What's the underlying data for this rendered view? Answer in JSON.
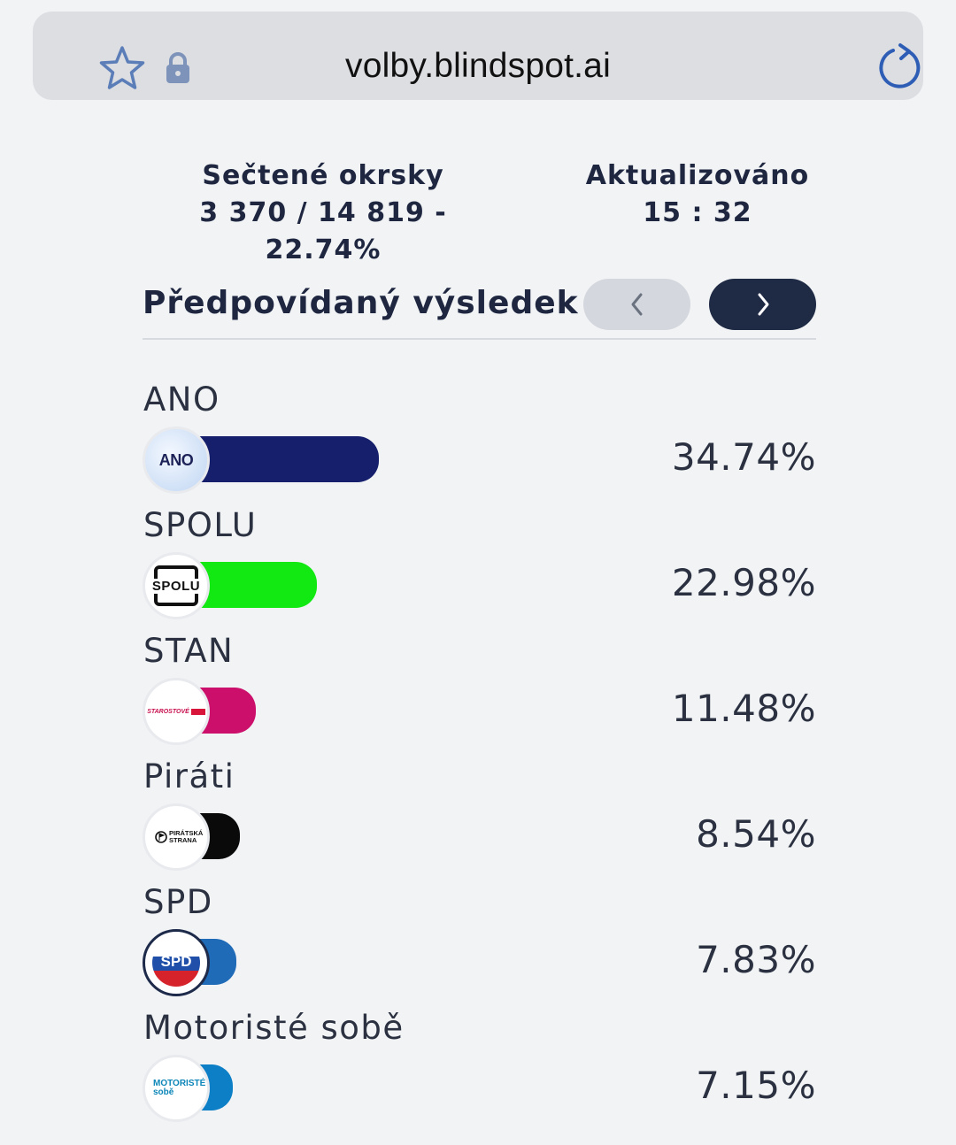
{
  "browser": {
    "url": "volby.blindspot.ai",
    "icons": [
      "star-icon",
      "lock-icon",
      "reload-icon"
    ]
  },
  "stats": {
    "counted_label": "Sečtené okrsky",
    "counted_value": "3 370 / 14 819 - 22.74%",
    "updated_label": "Aktualizováno",
    "updated_value": "15 : 32"
  },
  "section": {
    "title": "Předpovídaný výsledek",
    "prev_icon": "chevron-left-icon",
    "next_icon": "chevron-right-icon"
  },
  "parties": [
    {
      "name": "ANO",
      "percent": "34.74%",
      "value": 34.74,
      "color": "#151f6b",
      "logo_text": "ANO"
    },
    {
      "name": "SPOLU",
      "percent": "22.98%",
      "value": 22.98,
      "color": "#12e812",
      "logo_text": "SPOLU"
    },
    {
      "name": "STAN",
      "percent": "11.48%",
      "value": 11.48,
      "color": "#cc0f6b",
      "logo_text": "STAROSTOVÉ"
    },
    {
      "name": "Piráti",
      "percent": "8.54%",
      "value": 8.54,
      "color": "#0a0a0a",
      "logo_text": "PIRÁTSKÁ STRANA"
    },
    {
      "name": "SPD",
      "percent": "7.83%",
      "value": 7.83,
      "color": "#1f6bb8",
      "logo_text": "SPD"
    },
    {
      "name": "Motoristé sobě",
      "percent": "7.15%",
      "value": 7.15,
      "color": "#0d7fc6",
      "logo_text": "MOTORISTÉ sobě"
    }
  ]
}
